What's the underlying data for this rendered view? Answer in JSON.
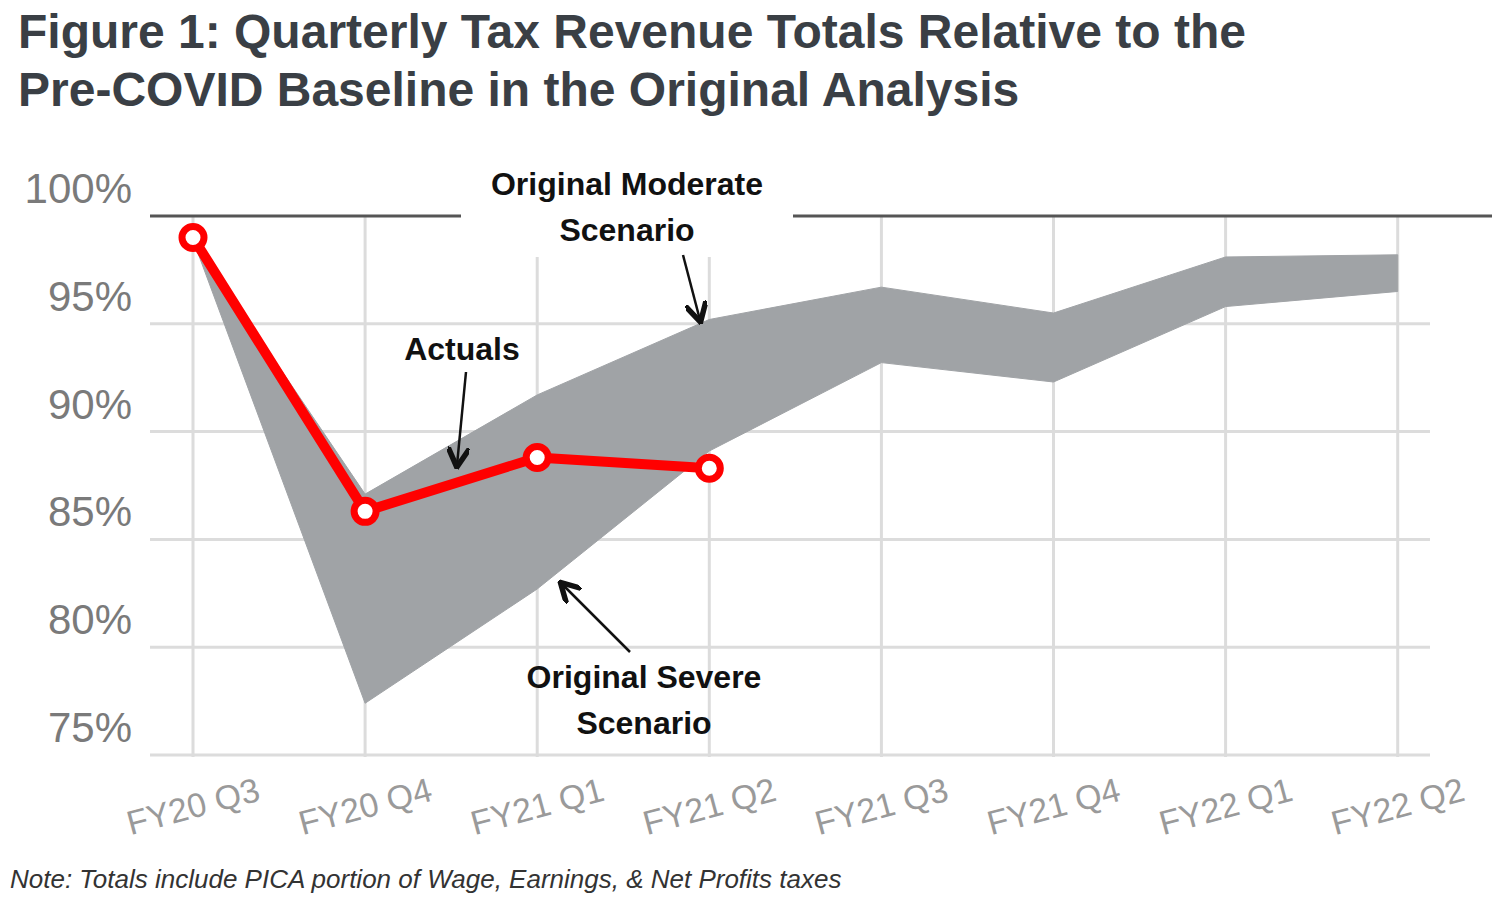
{
  "chart_data": {
    "type": "line",
    "title": "Figure 1: Quarterly Tax Revenue Totals Relative to the Pre-COVID Baseline in the Original Analysis",
    "note": "Note: Totals include PICA portion of Wage, Earnings, & Net Profits taxes",
    "categories": [
      "FY20 Q3",
      "FY20 Q4",
      "FY21 Q1",
      "FY21 Q2",
      "FY21 Q3",
      "FY21 Q4",
      "FY22 Q1",
      "FY22 Q2"
    ],
    "series": [
      {
        "name": "Original Moderate Scenario",
        "type": "area",
        "color": "#a0a3a6",
        "values": [
          98.9,
          87.1,
          91.7,
          95.2,
          96.7,
          95.5,
          98.1,
          98.2
        ]
      },
      {
        "name": "Original Severe Scenario",
        "type": "area",
        "color": "#a0a3a6",
        "values": [
          98.9,
          77.4,
          82.7,
          89.1,
          93.2,
          92.3,
          95.8,
          96.5
        ]
      },
      {
        "name": "Actuals",
        "type": "line",
        "color": "#ff0000",
        "marker": "circle",
        "values": [
          99.0,
          86.3,
          88.8,
          88.3,
          null,
          null,
          null,
          null
        ]
      }
    ],
    "ylim": [
      75,
      100
    ],
    "yticks": [
      {
        "value": 75,
        "label": "75%"
      },
      {
        "value": 80,
        "label": "80%"
      },
      {
        "value": 85,
        "label": "85%"
      },
      {
        "value": 90,
        "label": "90%"
      },
      {
        "value": 95,
        "label": "95%"
      },
      {
        "value": 100,
        "label": "100%"
      }
    ],
    "grid": true
  }
}
